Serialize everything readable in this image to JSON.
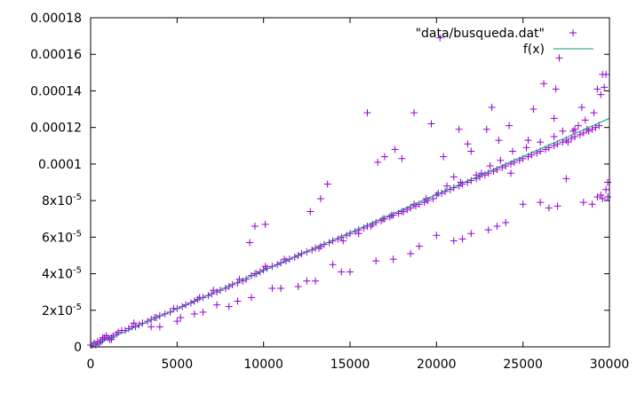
{
  "chart_data": {
    "type": "scatter",
    "title": "",
    "xlabel": "",
    "ylabel": "",
    "xlim": [
      0,
      30000
    ],
    "ylim": [
      0,
      0.00018
    ],
    "grid": false,
    "legend_position": "top-right",
    "x_ticks": [
      {
        "value": 0,
        "label": "0"
      },
      {
        "value": 5000,
        "label": "5000"
      },
      {
        "value": 10000,
        "label": "10000"
      },
      {
        "value": 15000,
        "label": "15000"
      },
      {
        "value": 20000,
        "label": "20000"
      },
      {
        "value": 25000,
        "label": "25000"
      },
      {
        "value": 30000,
        "label": "30000"
      }
    ],
    "y_ticks": [
      {
        "value": 0,
        "label": "0",
        "sup": ""
      },
      {
        "value": 2e-05,
        "label": "2x10",
        "sup": "-5"
      },
      {
        "value": 4e-05,
        "label": "4x10",
        "sup": "-5"
      },
      {
        "value": 6e-05,
        "label": "6x10",
        "sup": "-5"
      },
      {
        "value": 8e-05,
        "label": "8x10",
        "sup": "-5"
      },
      {
        "value": 0.0001,
        "label": "0.0001",
        "sup": ""
      },
      {
        "value": 0.00012,
        "label": "0.00012",
        "sup": ""
      },
      {
        "value": 0.00014,
        "label": "0.00014",
        "sup": ""
      },
      {
        "value": 0.00016,
        "label": "0.00016",
        "sup": ""
      },
      {
        "value": 0.00018,
        "label": "0.00018",
        "sup": ""
      }
    ],
    "series": [
      {
        "name": "\"data/busqueda.dat\"",
        "style": "points",
        "marker": "+",
        "color": "#9400d3",
        "x": [
          0,
          100,
          200,
          300,
          400,
          500,
          600,
          700,
          800,
          900,
          1000,
          1100,
          1200,
          1300,
          1500,
          1600,
          1800,
          2000,
          2200,
          2400,
          2600,
          2800,
          3000,
          3300,
          3500,
          3800,
          4000,
          4300,
          4600,
          5000,
          5300,
          5500,
          5800,
          6000,
          6200,
          6500,
          6800,
          7000,
          7300,
          7500,
          7800,
          8000,
          8200,
          8500,
          8800,
          9000,
          9300,
          9500,
          9800,
          10000,
          10200,
          10500,
          10800,
          11000,
          11300,
          11500,
          11800,
          12000,
          12200,
          12500,
          12800,
          13000,
          13300,
          13500,
          13800,
          14000,
          14300,
          14500,
          14800,
          15000,
          15300,
          15500,
          15800,
          16000,
          16300,
          16500,
          16800,
          17000,
          17300,
          17500,
          17800,
          18000,
          18300,
          18500,
          18800,
          19000,
          19300,
          19500,
          19800,
          20000,
          20300,
          20500,
          20800,
          21000,
          21300,
          21500,
          21800,
          22000,
          22300,
          22500,
          22800,
          23000,
          23300,
          23500,
          23800,
          24000,
          24300,
          24500,
          24800,
          25000,
          25300,
          25500,
          25800,
          26000,
          26300,
          26500,
          26800,
          27000,
          27300,
          27500,
          27800,
          28000,
          28300,
          28500,
          28800,
          29000,
          29200,
          29400,
          29500,
          29700,
          29800,
          29900,
          29800,
          29600,
          29500,
          29300,
          29000,
          28500,
          27500,
          27000,
          26500,
          26000,
          25000,
          24000,
          23500,
          23000,
          22000,
          21500,
          21000,
          20000,
          19000,
          18500,
          17500,
          16500,
          15000,
          14500,
          14000,
          13000,
          12500,
          12000,
          11000,
          10500,
          9300,
          8500,
          8000,
          7300,
          6500,
          6000,
          5200,
          5000,
          4000,
          3500,
          700,
          1200,
          2500,
          3700,
          4800,
          6300,
          7100,
          8600,
          9600,
          10100,
          11200,
          13200,
          14600,
          15500,
          16200,
          16900,
          17400,
          18100,
          18700,
          19400,
          20100,
          20600,
          21400,
          22300,
          23100,
          23700,
          24400,
          25200,
          26000,
          26800,
          27300,
          28200,
          28600,
          29100,
          9200,
          9500,
          10100,
          12700,
          13300,
          13700,
          16000,
          16600,
          17000,
          17600,
          18000,
          18700,
          19700,
          20400,
          21000,
          21800,
          22600,
          23200,
          24200,
          25600,
          26200,
          26800,
          27100,
          27600,
          28000,
          28400,
          28700,
          29300,
          29600,
          29900,
          20200,
          21300,
          22000,
          22900,
          23600,
          24300,
          25300,
          26900,
          27900
        ],
        "y": [
          1e-06,
          1e-06,
          2e-06,
          1e-06,
          3e-06,
          2e-06,
          3e-06,
          4e-06,
          5e-06,
          6e-06,
          5e-06,
          4e-06,
          5e-06,
          6e-06,
          7e-06,
          8e-06,
          9e-06,
          9e-06,
          1e-05,
          1.1e-05,
          1.1e-05,
          1.2e-05,
          1.3e-05,
          1.4e-05,
          1.5e-05,
          1.6e-05,
          1.7e-05,
          1.8e-05,
          1.9e-05,
          2.1e-05,
          2.2e-05,
          2.3e-05,
          2.4e-05,
          2.5e-05,
          2.6e-05,
          2.7e-05,
          2.8e-05,
          2.9e-05,
          3e-05,
          3.1e-05,
          3.2e-05,
          3.3e-05,
          3.4e-05,
          3.5e-05,
          3.6e-05,
          3.7e-05,
          3.9e-05,
          4e-05,
          4.1e-05,
          4.2e-05,
          4.3e-05,
          4.4e-05,
          4.5e-05,
          4.6e-05,
          4.7e-05,
          4.8e-05,
          4.9e-05,
          5e-05,
          5.1e-05,
          5.2e-05,
          5.3e-05,
          5.4e-05,
          5.5e-05,
          5.6e-05,
          5.7e-05,
          5.8e-05,
          5.9e-05,
          6e-05,
          6.1e-05,
          6.2e-05,
          6.3e-05,
          6.4e-05,
          6.5e-05,
          6.6e-05,
          6.7e-05,
          6.8e-05,
          6.9e-05,
          7e-05,
          7.1e-05,
          7.2e-05,
          7.3e-05,
          7.4e-05,
          7.5e-05,
          7.6e-05,
          7.7e-05,
          7.8e-05,
          7.9e-05,
          8e-05,
          8.1e-05,
          8.3e-05,
          8.4e-05,
          8.5e-05,
          8.6e-05,
          8.7e-05,
          8.8e-05,
          8.9e-05,
          9e-05,
          9.1e-05,
          9.2e-05,
          9.3e-05,
          9.4e-05,
          9.5e-05,
          9.6e-05,
          9.7e-05,
          9.8e-05,
          9.9e-05,
          0.0001,
          0.000101,
          0.000102,
          0.000103,
          0.000104,
          0.000105,
          0.000106,
          0.000107,
          0.000108,
          0.000109,
          0.00011,
          0.000111,
          0.000112,
          0.000113,
          0.000114,
          0.000115,
          0.000116,
          0.000117,
          0.000118,
          0.000119,
          0.00012,
          0.000121,
          0.000138,
          0.000142,
          0.000149,
          9e-05,
          8.6e-05,
          8.1e-05,
          8.3e-05,
          8.2e-05,
          7.8e-05,
          7.9e-05,
          9.2e-05,
          7.7e-05,
          7.6e-05,
          7.9e-05,
          7.8e-05,
          6.8e-05,
          6.6e-05,
          6.4e-05,
          6.2e-05,
          5.9e-05,
          5.8e-05,
          6.1e-05,
          5.5e-05,
          5.1e-05,
          4.8e-05,
          4.7e-05,
          4.1e-05,
          4.1e-05,
          4.5e-05,
          3.6e-05,
          3.6e-05,
          3.3e-05,
          3.2e-05,
          3.2e-05,
          2.7e-05,
          2.5e-05,
          2.2e-05,
          2.3e-05,
          1.9e-05,
          1.8e-05,
          1.6e-05,
          1.4e-05,
          1.1e-05,
          1.1e-05,
          5e-06,
          4e-06,
          1.3e-05,
          1.6e-05,
          2.1e-05,
          2.7e-05,
          3.1e-05,
          3.7e-05,
          4e-05,
          4.4e-05,
          4.8e-05,
          5.4e-05,
          5.8e-05,
          6.2e-05,
          6.6e-05,
          7e-05,
          7.2e-05,
          7.4e-05,
          7.8e-05,
          8.1e-05,
          8.4e-05,
          8.8e-05,
          9e-05,
          9.4e-05,
          9.9e-05,
          0.000102,
          0.000107,
          0.000109,
          0.000112,
          0.000115,
          0.000118,
          0.000121,
          0.000124,
          0.000128,
          5.7e-05,
          6.6e-05,
          6.7e-05,
          7.4e-05,
          8.1e-05,
          8.9e-05,
          0.000128,
          0.000101,
          0.000104,
          0.000108,
          0.000103,
          0.000128,
          0.000122,
          0.000104,
          9.3e-05,
          0.000111,
          9.5e-05,
          0.000131,
          0.000121,
          0.00013,
          0.000144,
          0.000125,
          0.000158,
          0.000112,
          0.000119,
          0.000131,
          0.000119,
          0.000141,
          0.000149,
          8.2e-05,
          0.000169,
          0.000119,
          0.000107,
          0.000119,
          0.000113,
          9.5e-05,
          0.000113,
          0.000141,
          0.000118
        ]
      },
      {
        "name": "f(x)",
        "style": "line",
        "color": "#009e73",
        "x": [
          0,
          30000
        ],
        "y": [
          0,
          0.000125
        ]
      }
    ]
  }
}
